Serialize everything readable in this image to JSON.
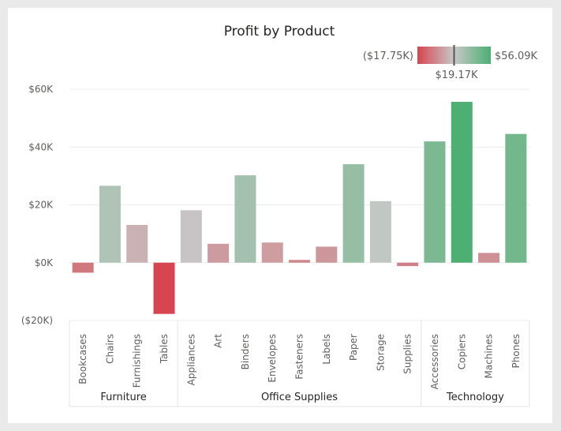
{
  "chart_data": {
    "type": "bar",
    "title": "Profit by Product",
    "groups": [
      {
        "name": "Furniture",
        "categories": [
          "Bookcases",
          "Chairs",
          "Furnishings",
          "Tables"
        ]
      },
      {
        "name": "Office Supplies",
        "categories": [
          "Appliances",
          "Art",
          "Binders",
          "Envelopes",
          "Fasteners",
          "Labels",
          "Paper",
          "Storage",
          "Supplies"
        ]
      },
      {
        "name": "Technology",
        "categories": [
          "Accessories",
          "Copiers",
          "Machines",
          "Phones"
        ]
      }
    ],
    "categories": [
      "Bookcases",
      "Chairs",
      "Furnishings",
      "Tables",
      "Appliances",
      "Art",
      "Binders",
      "Envelopes",
      "Fasteners",
      "Labels",
      "Paper",
      "Storage",
      "Supplies",
      "Accessories",
      "Copiers",
      "Machines",
      "Phones"
    ],
    "values": [
      -3.47,
      26.59,
      13.06,
      -17.73,
      18.14,
      6.53,
      30.22,
      6.96,
      0.95,
      5.55,
      34.05,
      21.28,
      -1.19,
      41.94,
      55.62,
      3.38,
      44.52
    ],
    "ylim": [
      -20,
      60
    ],
    "yticks": [
      -20,
      0,
      20,
      40,
      60
    ],
    "ytick_labels": [
      "($20K)",
      "$0K",
      "$20K",
      "$40K",
      "$60K"
    ],
    "grid": true,
    "legend": {
      "type": "gradient",
      "min_label": "($17.75K)",
      "mid_label": "$19.17K",
      "max_label": "$56.09K",
      "min": -17.75,
      "mid": 19.17,
      "max": 56.09,
      "min_color": "#d64550",
      "mid_color": "#c8c8c8",
      "max_color": "#4caf72",
      "placement": "top-right"
    }
  }
}
